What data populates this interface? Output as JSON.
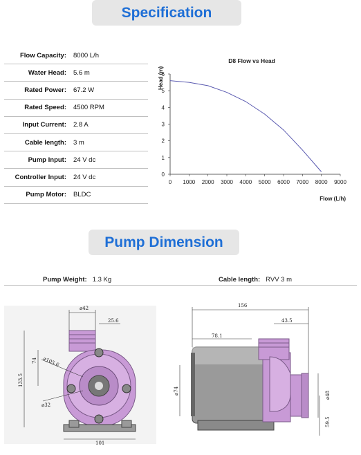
{
  "headings": {
    "specification": "Specification",
    "pump_dimension": "Pump Dimension"
  },
  "specs": [
    {
      "label": "Flow Capacity:",
      "value": "8000 L/h"
    },
    {
      "label": "Water Head:",
      "value": "5.6 m"
    },
    {
      "label": "Rated Power:",
      "value": "67.2 W"
    },
    {
      "label": "Rated Speed:",
      "value": "4500 RPM"
    },
    {
      "label": "Input Current:",
      "value": "2.8 A"
    },
    {
      "label": "Cable length:",
      "value": "3 m"
    },
    {
      "label": "Pump Input:",
      "value": "24 V dc"
    },
    {
      "label": "Controller Input:",
      "value": "24 V dc"
    },
    {
      "label": "Pump  Motor:",
      "value": "BLDC"
    }
  ],
  "chart_data": {
    "type": "line",
    "title": "D8 Flow vs Head",
    "xlabel": "Flow (L/h)",
    "ylabel": "Head (m)",
    "xlim": [
      0,
      9000
    ],
    "ylim": [
      0,
      6
    ],
    "x_ticks": [
      "0",
      "1000",
      "2000",
      "3000",
      "4000",
      "5000",
      "6000",
      "7000",
      "8000",
      "9000"
    ],
    "y_ticks": [
      "0",
      "1",
      "2",
      "3",
      "4",
      "5",
      "6"
    ],
    "series": [
      {
        "x": [
          0,
          1000,
          2000,
          3000,
          4000,
          5000,
          6000,
          7000,
          8000
        ],
        "y": [
          5.6,
          5.5,
          5.3,
          4.9,
          4.35,
          3.6,
          2.65,
          1.45,
          0.15
        ],
        "color": "#5a5ab0"
      }
    ]
  },
  "dimension_meta": {
    "weight_label": "Pump Weight:",
    "weight_value": "1.3 Kg",
    "cable_label": "Cable length:",
    "cable_value": "RVV 3 m"
  },
  "front_view": {
    "d42": "⌀42",
    "d25_6": "25.6",
    "d74": "74",
    "d105_6": "⌀105.6",
    "d133_5": "133.5",
    "d32": "⌀32",
    "d101": "101"
  },
  "side_view": {
    "d156": "156",
    "d43_5": "43.5",
    "d78_1": "78.1",
    "d74": "⌀74",
    "d48": "⌀48",
    "d59_5": "59.5"
  },
  "colors": {
    "accent": "#1f6fd6",
    "banner_bg": "#e6e6e6",
    "pump_body": "#c89ad6",
    "motor": "#9a9a9a",
    "curve": "#5a5ab0"
  }
}
